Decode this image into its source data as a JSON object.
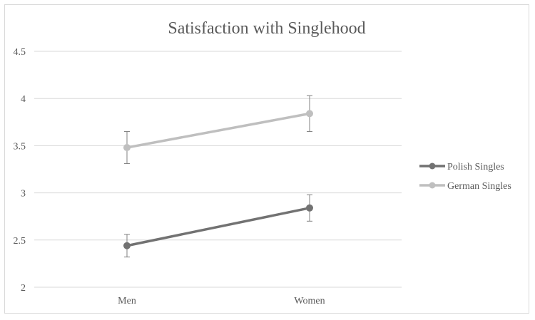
{
  "chart_data": {
    "type": "line",
    "title": "Satisfaction with Singlehood",
    "xlabel": "",
    "ylabel": "",
    "categories": [
      "Men",
      "Women"
    ],
    "ylim": [
      2,
      4.5
    ],
    "yticks": [
      2,
      2.5,
      3,
      3.5,
      4,
      4.5
    ],
    "ytick_labels": [
      "2",
      "2.5",
      "3",
      "3.5",
      "4",
      "4.5"
    ],
    "grid": true,
    "legend_position": "right",
    "series": [
      {
        "name": "Polish Singles",
        "color": "#727272",
        "values": [
          2.44,
          2.84
        ],
        "error_low": [
          2.32,
          2.7
        ],
        "error_high": [
          2.56,
          2.98
        ]
      },
      {
        "name": "German Singles",
        "color": "#bfbfbf",
        "values": [
          3.48,
          3.84
        ],
        "error_low": [
          3.31,
          3.65
        ],
        "error_high": [
          3.65,
          4.03
        ]
      }
    ],
    "colors": {
      "grid": "#d9d9d9",
      "text": "#595959",
      "errorbar": "#808080"
    }
  }
}
